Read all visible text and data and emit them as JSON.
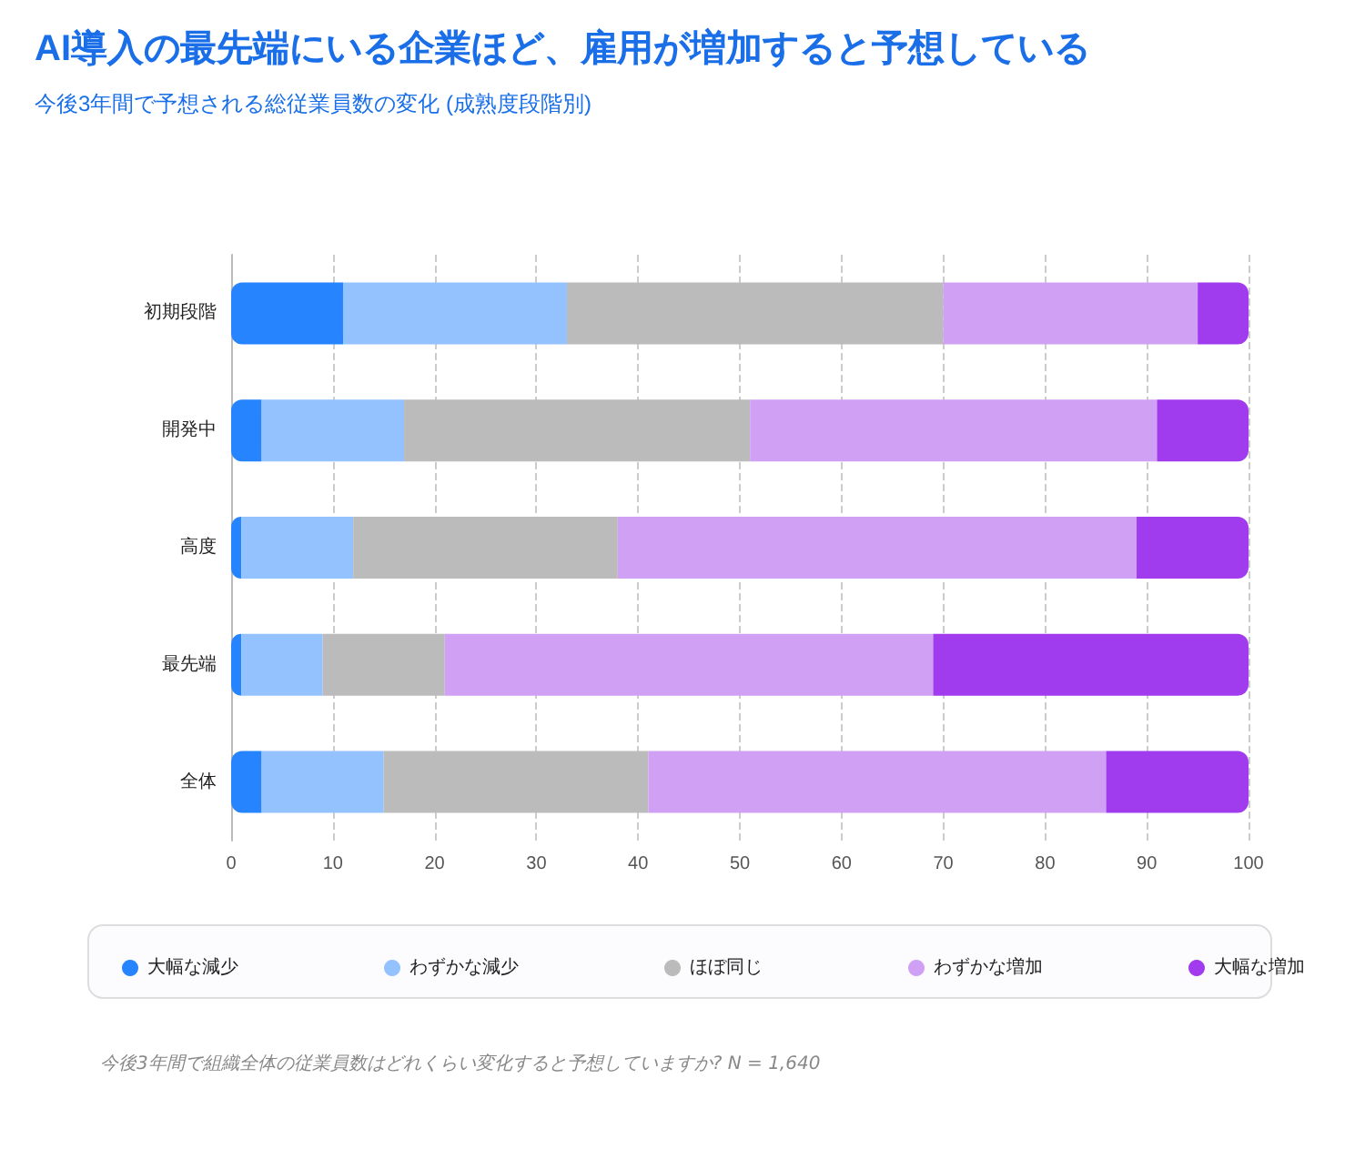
{
  "chart_data": {
    "type": "bar",
    "orientation": "horizontal",
    "stacked": true,
    "title": "AI導入の最先端にいる企業ほど、雇用が増加すると予想している",
    "subtitle": "今後3年間で予想される総従業員数の変化 (成熟度段階別)",
    "categories": [
      "初期段階",
      "開発中",
      "高度",
      "最先端",
      "全体"
    ],
    "series": [
      {
        "name": "大幅な減少",
        "color": "#2684ff",
        "values": [
          11,
          3,
          1,
          1,
          3
        ]
      },
      {
        "name": "わずかな減少",
        "color": "#93c2ff",
        "values": [
          22,
          14,
          11,
          8,
          12
        ]
      },
      {
        "name": "ほぼ同じ",
        "color": "#bbbbbb",
        "values": [
          37,
          34,
          26,
          12,
          26
        ]
      },
      {
        "name": "わずかな増加",
        "color": "#d0a0f5",
        "values": [
          25,
          40,
          51,
          48,
          45
        ]
      },
      {
        "name": "大幅な増加",
        "color": "#a03ced",
        "values": [
          5,
          9,
          11,
          31,
          14
        ]
      }
    ],
    "xlim": [
      0,
      100
    ],
    "xticks": [
      0,
      10,
      20,
      30,
      40,
      50,
      60,
      70,
      80,
      90,
      100
    ],
    "grid": "x",
    "legend": "bottom",
    "annotations": [
      "今後3年間で組織全体の従業員数はどれくらい変化すると予想していますか? N = 1,640"
    ]
  }
}
